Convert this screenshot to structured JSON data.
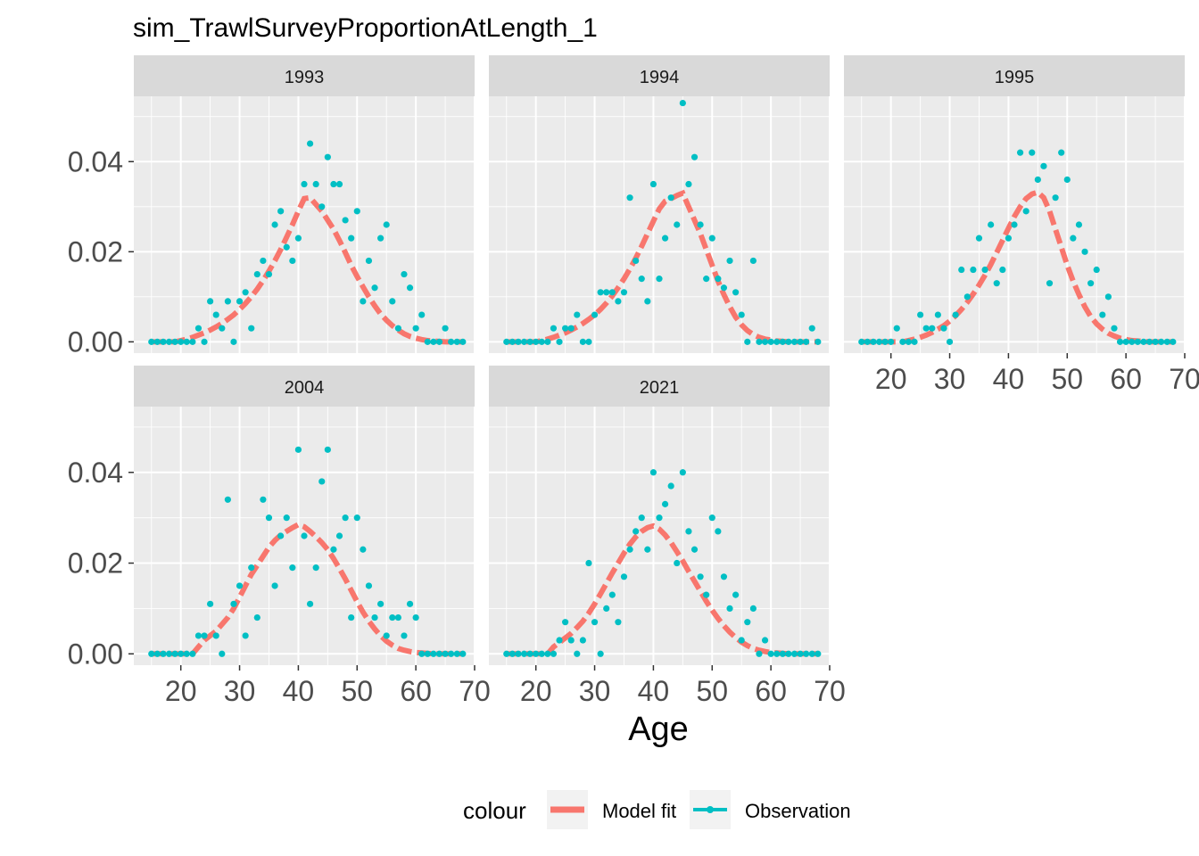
{
  "chart_data": {
    "type": "line",
    "title": "sim_TrawlSurveyProportionAtLength_1",
    "xlabel": "Age",
    "ylabel": "",
    "xlim": [
      12,
      70
    ],
    "ylim": [
      -0.0025,
      0.0545
    ],
    "x_ticks": [
      20,
      30,
      40,
      50,
      60,
      70
    ],
    "y_ticks": [
      0.0,
      0.02,
      0.04
    ],
    "y_tick_labels": [
      "0.00",
      "0.02",
      "0.04"
    ],
    "legend": {
      "title": "colour",
      "placement": "bottom",
      "entries": [
        {
          "label": "Model fit",
          "color": "#F8766D",
          "shape": "line"
        },
        {
          "label": "Observation",
          "color": "#00BFC4",
          "shape": "point"
        }
      ]
    },
    "colors": {
      "model": "#F8766D",
      "observation": "#00BFC4",
      "panel_bg": "#EBEBEB",
      "strip_bg": "#D9D9D9"
    },
    "x": [
      15,
      16,
      17,
      18,
      19,
      20,
      21,
      22,
      23,
      24,
      25,
      26,
      27,
      28,
      29,
      30,
      31,
      32,
      33,
      34,
      35,
      36,
      37,
      38,
      39,
      40,
      41,
      42,
      43,
      44,
      45,
      46,
      47,
      48,
      49,
      50,
      51,
      52,
      53,
      54,
      55,
      56,
      57,
      58,
      59,
      60,
      61,
      62,
      63,
      64,
      65,
      66,
      67,
      68
    ],
    "panels": [
      {
        "label": "1993",
        "model": [
          0,
          0,
          0,
          0,
          0,
          0.0003,
          0.0006,
          0.001,
          0.0015,
          0.002,
          0.0026,
          0.0033,
          0.0041,
          0.005,
          0.006,
          0.0072,
          0.0085,
          0.01,
          0.0117,
          0.0136,
          0.0157,
          0.018,
          0.0205,
          0.0232,
          0.026,
          0.029,
          0.0318,
          0.032,
          0.0305,
          0.029,
          0.027,
          0.025,
          0.0225,
          0.0198,
          0.017,
          0.0145,
          0.0122,
          0.01,
          0.008,
          0.0062,
          0.0048,
          0.0036,
          0.0026,
          0.0018,
          0.0012,
          0.0008,
          0.0005,
          0.0003,
          0.0002,
          0.0001,
          0,
          0,
          0,
          0
        ],
        "observed": [
          0,
          0,
          0,
          0,
          0,
          0,
          0,
          0,
          0.003,
          0.0,
          0.009,
          0.006,
          0.003,
          0.009,
          0.0,
          0.009,
          0.011,
          0.003,
          0.015,
          0.018,
          0.015,
          0.026,
          0.029,
          0.021,
          0.018,
          0.023,
          0.035,
          0.044,
          0.035,
          0.03,
          0.041,
          0.035,
          0.035,
          0.027,
          0.023,
          0.029,
          0.009,
          0.018,
          0.012,
          0.023,
          0.026,
          0.009,
          0.003,
          0.015,
          0.012,
          0.003,
          0.006,
          0.0,
          0.0,
          0.0,
          0.003,
          0.0,
          0.0,
          0.0
        ]
      },
      {
        "label": "1994",
        "model": [
          0,
          0,
          0,
          0,
          0,
          0,
          0.0003,
          0.0006,
          0.001,
          0.0015,
          0.002,
          0.0026,
          0.0033,
          0.0041,
          0.005,
          0.006,
          0.0072,
          0.0086,
          0.0102,
          0.012,
          0.014,
          0.0162,
          0.0186,
          0.0212,
          0.024,
          0.0268,
          0.0295,
          0.0312,
          0.0318,
          0.0325,
          0.033,
          0.03,
          0.027,
          0.024,
          0.0205,
          0.017,
          0.0135,
          0.0105,
          0.0078,
          0.0055,
          0.0038,
          0.0025,
          0.0016,
          0.001,
          0.0006,
          0.0004,
          0.0002,
          0.0001,
          0,
          0,
          0,
          0,
          0,
          0
        ],
        "observed": [
          0,
          0,
          0,
          0,
          0,
          0,
          0,
          0,
          0.003,
          0.0,
          0.003,
          0.003,
          0.006,
          0.0,
          0.0,
          0.006,
          0.011,
          0.011,
          0.011,
          0.009,
          0.011,
          0.032,
          0.018,
          0.014,
          0.009,
          0.035,
          0.014,
          0.023,
          0.032,
          0.026,
          0.053,
          0.035,
          0.041,
          0.026,
          0.014,
          0.023,
          0.014,
          0.012,
          0.018,
          0.011,
          0.006,
          0.0,
          0.018,
          0.0,
          0.0,
          0.0,
          0.0,
          0.0,
          0.0,
          0.0,
          0.0,
          0.0,
          0.003,
          0.0
        ]
      },
      {
        "label": "1995",
        "model": [
          0,
          0,
          0,
          0,
          0,
          0,
          0,
          0,
          0.0003,
          0.0006,
          0.001,
          0.0015,
          0.0021,
          0.0028,
          0.0036,
          0.0046,
          0.0058,
          0.0072,
          0.0088,
          0.0106,
          0.0126,
          0.0148,
          0.0172,
          0.0198,
          0.0225,
          0.0252,
          0.0278,
          0.03,
          0.0318,
          0.0328,
          0.0332,
          0.032,
          0.029,
          0.025,
          0.021,
          0.017,
          0.0135,
          0.0105,
          0.0078,
          0.0056,
          0.004,
          0.0028,
          0.0019,
          0.0013,
          0.0008,
          0.0005,
          0.0003,
          0.0002,
          0.0001,
          0,
          0,
          0,
          0,
          0
        ],
        "observed": [
          0,
          0,
          0,
          0,
          0,
          0,
          0.003,
          0.0,
          0.0,
          0.0,
          0.006,
          0.003,
          0.003,
          0.006,
          0.003,
          0.0,
          0.006,
          0.016,
          0.01,
          0.016,
          0.023,
          0.016,
          0.026,
          0.013,
          0.016,
          0.023,
          0.026,
          0.042,
          0.029,
          0.042,
          0.036,
          0.039,
          0.013,
          0.032,
          0.042,
          0.036,
          0.023,
          0.026,
          0.02,
          0.013,
          0.016,
          0.006,
          0.01,
          0.003,
          0.0,
          0.0,
          0.0,
          0.0,
          0.0,
          0.0,
          0.0,
          0.0,
          0.0,
          0.0
        ]
      },
      {
        "label": "2004",
        "model": [
          0,
          0,
          0,
          0,
          0,
          0,
          0,
          0,
          0.0015,
          0.003,
          0.004,
          0.005,
          0.0065,
          0.008,
          0.01,
          0.0125,
          0.015,
          0.0175,
          0.0195,
          0.0215,
          0.0235,
          0.025,
          0.0262,
          0.027,
          0.0278,
          0.0285,
          0.028,
          0.027,
          0.0258,
          0.0245,
          0.023,
          0.021,
          0.0188,
          0.0165,
          0.014,
          0.0115,
          0.0092,
          0.0072,
          0.0055,
          0.004,
          0.0028,
          0.0019,
          0.0012,
          0.0008,
          0.0005,
          0.0003,
          0.0002,
          0.0001,
          0,
          0,
          0,
          0,
          0,
          0
        ],
        "observed": [
          0,
          0,
          0,
          0,
          0,
          0,
          0,
          0,
          0.004,
          0.004,
          0.011,
          0.004,
          0.0,
          0.034,
          0.011,
          0.015,
          0.004,
          0.019,
          0.008,
          0.034,
          0.03,
          0.015,
          0.026,
          0.03,
          0.019,
          0.045,
          0.026,
          0.011,
          0.019,
          0.038,
          0.045,
          0.023,
          0.026,
          0.03,
          0.008,
          0.03,
          0.023,
          0.015,
          0.008,
          0.011,
          0.004,
          0.008,
          0.008,
          0.004,
          0.011,
          0.008,
          0.0,
          0.0,
          0.0,
          0.0,
          0.0,
          0.0,
          0.0,
          0.0
        ]
      },
      {
        "label": "2021",
        "model": [
          0,
          0,
          0,
          0,
          0,
          0,
          0,
          0,
          0.0015,
          0.0025,
          0.0035,
          0.0045,
          0.0058,
          0.0072,
          0.009,
          0.011,
          0.0132,
          0.0155,
          0.0178,
          0.02,
          0.0222,
          0.0242,
          0.0258,
          0.027,
          0.0278,
          0.0282,
          0.0275,
          0.0262,
          0.0245,
          0.0225,
          0.0205,
          0.0182,
          0.016,
          0.0138,
          0.0116,
          0.0096,
          0.0078,
          0.0062,
          0.0048,
          0.0036,
          0.0026,
          0.0018,
          0.0012,
          0.0008,
          0.0005,
          0.0003,
          0.0002,
          0.0001,
          0,
          0,
          0,
          0,
          0,
          0
        ],
        "observed": [
          0,
          0,
          0,
          0,
          0,
          0,
          0,
          0,
          0.0,
          0.003,
          0.007,
          0.003,
          0.0,
          0.003,
          0.02,
          0.007,
          0.0,
          0.01,
          0.013,
          0.007,
          0.017,
          0.023,
          0.027,
          0.03,
          0.023,
          0.04,
          0.03,
          0.033,
          0.037,
          0.02,
          0.04,
          0.027,
          0.023,
          0.017,
          0.013,
          0.03,
          0.027,
          0.017,
          0.01,
          0.013,
          0.003,
          0.007,
          0.01,
          0.0,
          0.003,
          0.0,
          0.0,
          0.0,
          0.0,
          0.0,
          0.0,
          0.0,
          0.0,
          0.0
        ]
      }
    ]
  }
}
